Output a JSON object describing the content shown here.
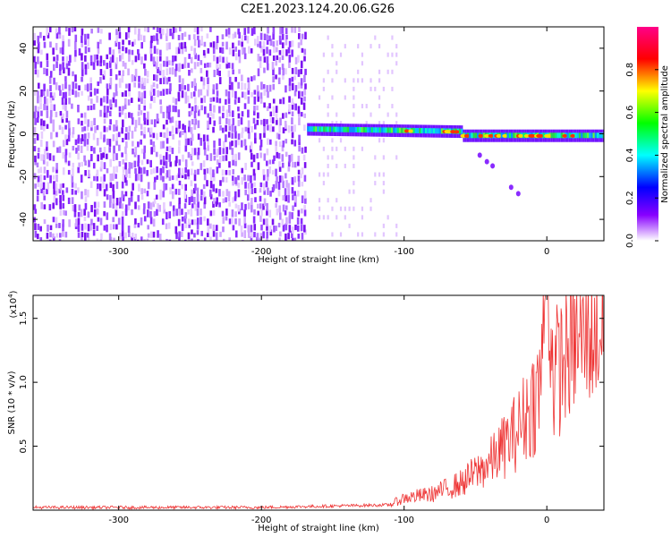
{
  "title": "C2E1.2023.124.20.06.G26",
  "chart_data": [
    {
      "type": "heatmap",
      "xlabel": "Height of straight line (km)",
      "ylabel": "Frequency (Hz)",
      "xlim": [
        -360,
        40
      ],
      "ylim": [
        -50,
        50
      ],
      "xticks": [
        -300,
        -200,
        -100,
        0
      ],
      "yticks": [
        -40,
        -20,
        0,
        20,
        40
      ],
      "colorbar": {
        "label": "Normalized spectral amplitude",
        "range": [
          0,
          1
        ],
        "ticks": [
          "0.0",
          "0.2",
          "0.4",
          "0.6",
          "0.8"
        ],
        "colors": [
          "#ffffff",
          "#8800ff",
          "#0000ff",
          "#00ffff",
          "#00ff00",
          "#ffff00",
          "#ff0000",
          "#ff0088"
        ]
      },
      "regions": [
        {
          "x": [
            -360,
            -170
          ],
          "freq_center": 0,
          "level": "0.2-0.35",
          "description": "broadband noise"
        },
        {
          "x": [
            -170,
            40
          ],
          "freq_center": 0,
          "level": "0.3-0.95",
          "description": "narrow carrier line"
        }
      ]
    },
    {
      "type": "line",
      "xlabel": "Height of straight line (km)",
      "ylabel": "SNR (10 * v/v)",
      "scale_label": "(x10",
      "scale_exponent": "4",
      "scale_suffix": ")",
      "xlim": [
        -360,
        40
      ],
      "ylim": [
        0,
        1.68
      ],
      "xticks": [
        -300,
        -200,
        -100,
        0
      ],
      "yticks": [
        "0.5",
        "1.0",
        "1.5"
      ],
      "ytick_values": [
        0.5,
        1.0,
        1.5
      ],
      "color": "#ee3333",
      "keypoints_x": [
        -360,
        -200,
        -110,
        -100,
        -80,
        -60,
        -40,
        -20,
        -5,
        0,
        5,
        20,
        40
      ],
      "keypoints_y": [
        0.02,
        0.02,
        0.04,
        0.09,
        0.12,
        0.2,
        0.35,
        0.6,
        0.9,
        1.68,
        1.0,
        1.25,
        1.35
      ]
    }
  ]
}
